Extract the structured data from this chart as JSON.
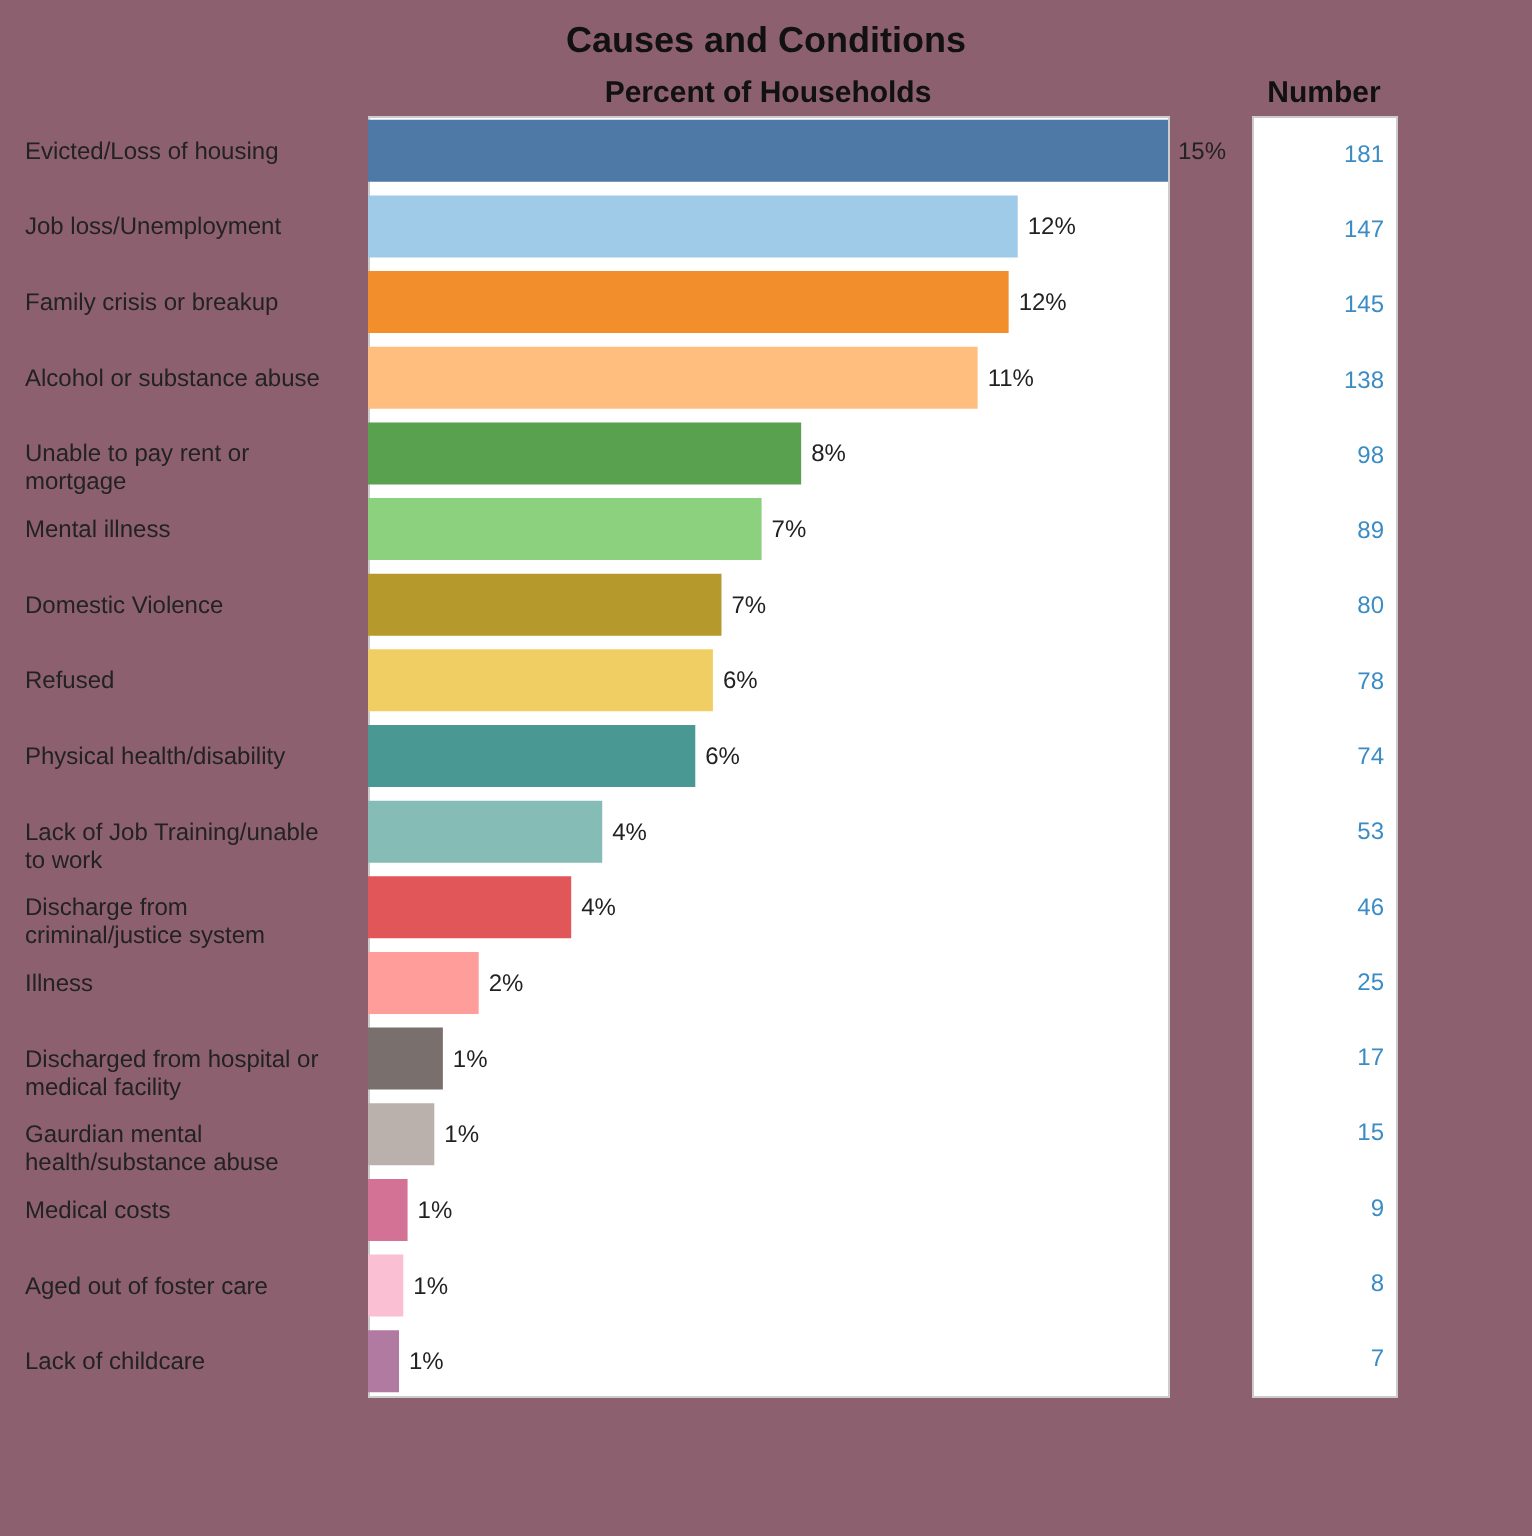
{
  "chart_data": [
    {
      "type": "bar",
      "orientation": "horizontal",
      "title": "Causes and Conditions",
      "xlabel": "Percent of Households",
      "categories": [
        "Evicted/Loss of housing",
        "Job loss/Unemployment",
        "Family crisis or breakup",
        "Alcohol or substance abuse",
        "Unable to pay rent or mortgage",
        "Mental illness",
        "Domestic Violence",
        "Refused",
        "Physical health/disability",
        "Lack of Job Training/unable to work",
        "Discharge from criminal/justice system",
        "Illness",
        "Discharged from hospital or medical facility",
        "Gaurdian mental health/substance abuse",
        "Medical costs",
        "Aged out of foster care",
        "Lack of childcare"
      ],
      "values": [
        14.96,
        12.15,
        11.98,
        11.4,
        8.1,
        7.36,
        6.61,
        6.45,
        6.12,
        4.38,
        3.8,
        2.07,
        1.4,
        1.24,
        0.74,
        0.66,
        0.58
      ],
      "colors": [
        "#4e79a7",
        "#a0cbe8",
        "#f28e2b",
        "#ffbe7d",
        "#59a14f",
        "#8cd17d",
        "#b6992d",
        "#f1ce63",
        "#499894",
        "#86bcb6",
        "#e15759",
        "#ff9d9a",
        "#79706e",
        "#bab0ac",
        "#d37295",
        "#fabfd2",
        "#b07aa1"
      ],
      "value_labels": [
        "15%",
        "12%",
        "12%",
        "11%",
        "8%",
        "7%",
        "7%",
        "6%",
        "6%",
        "4%",
        "4%",
        "2%",
        "1%",
        "1%",
        "1%",
        "1%",
        "1%"
      ]
    },
    {
      "type": "other",
      "title": "Number",
      "values": [
        181,
        147,
        145,
        138,
        98,
        89,
        80,
        78,
        74,
        53,
        46,
        25,
        17,
        15,
        9,
        8,
        7
      ],
      "color": "#3b8cc4",
      "data_labels": true
    }
  ]
}
